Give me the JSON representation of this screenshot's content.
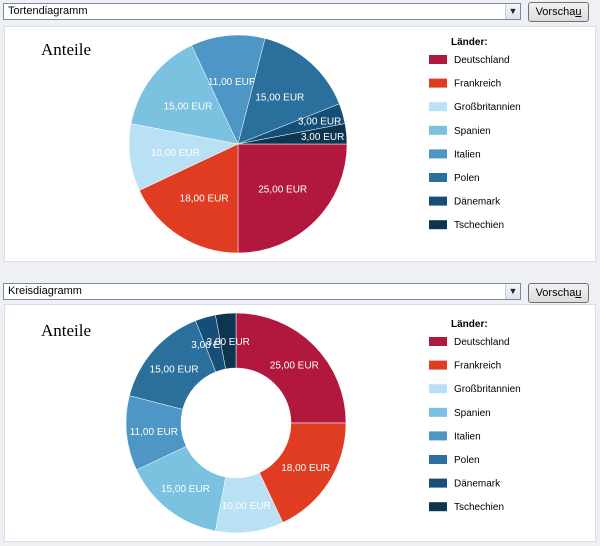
{
  "panels": [
    {
      "select_value": "Tortendiagramm",
      "button_label": "Vorschau",
      "button_accel": "u"
    },
    {
      "select_value": "Kreisdiagramm",
      "button_label": "Vorschau",
      "button_accel": "u"
    }
  ],
  "legend_title": "Länder:",
  "chart_data": [
    {
      "type": "pie",
      "title": "Anteile",
      "categories": [
        "Deutschland",
        "Frankreich",
        "Großbritannien",
        "Spanien",
        "Italien",
        "Polen",
        "Dänemark",
        "Tschechien"
      ],
      "values": [
        25,
        18,
        10,
        15,
        11,
        15,
        3,
        3
      ],
      "labels": [
        "25,00 EUR",
        "18,00 EUR",
        "10,00 EUR",
        "15,00 EUR",
        "11,00 EUR",
        "15,00 EUR",
        "3,00 EUR",
        "3,00 EUR"
      ],
      "colors": [
        "#b2183d",
        "#e03c22",
        "#b9e0f4",
        "#7ac2e0",
        "#4d96c5",
        "#2b6f9c",
        "#154e78",
        "#0e3550"
      ],
      "legend_placement": "right",
      "donut": false
    },
    {
      "type": "pie",
      "title": "Anteile",
      "categories": [
        "Deutschland",
        "Frankreich",
        "Großbritannien",
        "Spanien",
        "Italien",
        "Polen",
        "Dänemark",
        "Tschechien"
      ],
      "values": [
        25,
        18,
        10,
        15,
        11,
        15,
        3,
        3
      ],
      "labels": [
        "25,00 EUR",
        "18,00 EUR",
        "10,00 EUR",
        "15,00 EUR",
        "11,00 EUR",
        "15,00 EUR",
        "3,00 EUR",
        "3,00 EUR"
      ],
      "colors": [
        "#b2183d",
        "#e03c22",
        "#b9e0f4",
        "#7ac2e0",
        "#4d96c5",
        "#2b6f9c",
        "#154e78",
        "#0e3550"
      ],
      "legend_placement": "right",
      "donut": true
    }
  ]
}
